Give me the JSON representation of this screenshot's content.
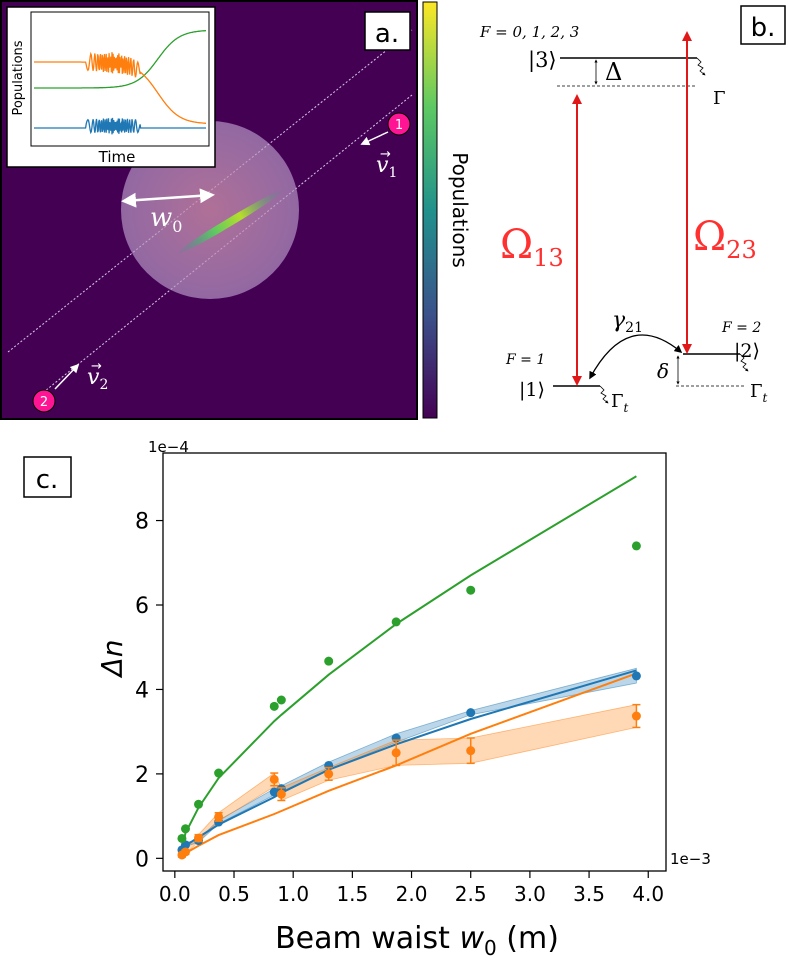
{
  "panel_a": {
    "label": "a.",
    "colorbar_label": "Populations",
    "beam_width_label": "w",
    "beam_width_sub": "0",
    "beam1": {
      "badge": "1",
      "vec": "v",
      "sub": "1"
    },
    "beam2": {
      "badge": "2",
      "vec": "v",
      "sub": "2"
    },
    "inset": {
      "ylabel": "Populations",
      "xlabel": "Time"
    },
    "colors": {
      "background": "#440154",
      "badge": "#ff1493"
    }
  },
  "panel_b": {
    "label": "b.",
    "level3": {
      "ket": "|3⟩",
      "F": "F = 0, 1, 2, 3"
    },
    "level2": {
      "ket": "|2⟩",
      "F": "F = 2"
    },
    "level1": {
      "ket": "|1⟩",
      "F": "F = 1"
    },
    "detuning_big": "Δ",
    "detuning_small": "δ",
    "gamma": "Γ",
    "gamma_t1": "Γ",
    "gamma_t1_sub": "t",
    "gamma_t2": "Γ",
    "gamma_t2_sub": "t",
    "omega13": "Ω",
    "omega13_sub": "13",
    "omega23": "Ω",
    "omega23_sub": "23",
    "gamma21": "γ",
    "gamma21_sub": "21",
    "colors": {
      "laser": "#ff3030"
    }
  },
  "panel_c": {
    "label": "c."
  },
  "chart_data": {
    "type": "scatter",
    "title": "",
    "xlabel": "Beam waist w₀ (m)",
    "xlabel_prefix": "Beam waist ",
    "xlabel_var": "w",
    "xlabel_sub": "0",
    "xlabel_unit": " (m)",
    "ylabel": "Δn",
    "x_offset_text": "1e−3",
    "y_offset_text": "1e−4",
    "xlim": [
      -0.1,
      4.15
    ],
    "ylim": [
      -0.3,
      9.6
    ],
    "xticks": [
      0.0,
      0.5,
      1.0,
      1.5,
      2.0,
      2.5,
      3.0,
      3.5,
      4.0
    ],
    "xtick_labels": [
      "0.0",
      "0.5",
      "1.0",
      "1.5",
      "2.0",
      "2.5",
      "3.0",
      "3.5",
      "4.0"
    ],
    "yticks": [
      0,
      2,
      4,
      6,
      8
    ],
    "ytick_labels": [
      "0",
      "2",
      "4",
      "6",
      "8"
    ],
    "grid": false,
    "series": [
      {
        "color": "#2ca02c",
        "points_x": [
          0.06,
          0.09,
          0.2,
          0.37,
          0.84,
          0.9,
          1.3,
          1.87,
          2.5,
          3.9
        ],
        "points_y": [
          0.47,
          0.7,
          1.28,
          2.02,
          3.6,
          3.75,
          4.67,
          5.6,
          6.35,
          7.4
        ],
        "line_x": [
          0.06,
          0.09,
          0.2,
          0.37,
          0.84,
          0.9,
          1.3,
          1.87,
          2.5,
          3.9
        ],
        "line_y": [
          0.25,
          0.6,
          1.2,
          1.9,
          3.25,
          3.4,
          4.35,
          5.55,
          6.7,
          9.05
        ]
      },
      {
        "color": "#1f77b4",
        "points_x": [
          0.06,
          0.09,
          0.2,
          0.37,
          0.84,
          0.9,
          1.3,
          1.87,
          2.5,
          3.9
        ],
        "points_y": [
          0.2,
          0.32,
          0.42,
          0.86,
          1.57,
          1.65,
          2.2,
          2.85,
          3.45,
          4.32
        ],
        "band_low": [
          0.17,
          0.28,
          0.38,
          0.82,
          1.5,
          1.58,
          2.1,
          2.75,
          3.4,
          4.15
        ],
        "band_high": [
          0.23,
          0.36,
          0.46,
          0.9,
          1.65,
          1.72,
          2.28,
          2.95,
          3.5,
          4.5
        ],
        "line_x": [
          0.06,
          0.09,
          0.2,
          0.37,
          0.84,
          0.9,
          1.3,
          1.87,
          2.5,
          3.9
        ],
        "line_y": [
          0.2,
          0.3,
          0.5,
          0.8,
          1.45,
          1.55,
          2.1,
          2.7,
          3.3,
          4.45
        ]
      },
      {
        "color": "#ff7f0e",
        "points_x": [
          0.06,
          0.09,
          0.2,
          0.37,
          0.84,
          0.9,
          1.3,
          1.87,
          2.5,
          3.9
        ],
        "points_y": [
          0.08,
          0.15,
          0.48,
          0.98,
          1.87,
          1.52,
          2.0,
          2.5,
          2.55,
          3.37
        ],
        "error": [
          0.05,
          0.05,
          0.08,
          0.1,
          0.15,
          0.15,
          0.15,
          0.3,
          0.3,
          0.27
        ],
        "band_low": [
          0.05,
          0.1,
          0.4,
          0.88,
          1.7,
          1.37,
          1.85,
          2.2,
          2.25,
          3.1
        ],
        "band_high": [
          0.12,
          0.2,
          0.56,
          1.08,
          2.02,
          1.67,
          2.15,
          2.8,
          2.85,
          3.64
        ],
        "line_x": [
          0.06,
          0.09,
          0.2,
          0.37,
          0.84,
          0.9,
          1.3,
          1.87,
          2.5,
          3.9
        ],
        "line_y": [
          0.08,
          0.12,
          0.3,
          0.55,
          1.05,
          1.12,
          1.6,
          2.2,
          2.95,
          4.38
        ]
      }
    ]
  }
}
